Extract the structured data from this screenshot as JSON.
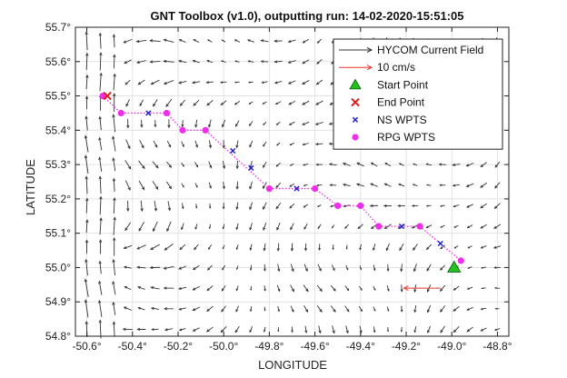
{
  "chart_data": {
    "type": "scatter",
    "title": "GNT Toolbox (v1.0), outputting run: 14-02-2020-15:51:05",
    "xlabel": "LONGITUDE",
    "ylabel": "LATITUDE",
    "xlim": [
      -50.65,
      -48.75
    ],
    "ylim": [
      54.8,
      55.7
    ],
    "x_ticks": [
      -50.6,
      -50.4,
      -50.2,
      -50.0,
      -49.8,
      -49.6,
      -49.4,
      -49.2,
      -49.0,
      -48.8
    ],
    "x_tick_labels": [
      "-50.6°",
      "-50.4°",
      "-50.2°",
      "-50.0°",
      "-49.8°",
      "-49.6°",
      "-49.4°",
      "-49.2°",
      "-49.0°",
      "-48.8°"
    ],
    "y_ticks": [
      54.8,
      54.9,
      55.0,
      55.1,
      55.2,
      55.3,
      55.4,
      55.5,
      55.6,
      55.7
    ],
    "y_tick_labels": [
      "54.8°",
      "54.9°",
      "55.0°",
      "55.1°",
      "55.2°",
      "55.3°",
      "55.4°",
      "55.5°",
      "55.6°",
      "55.7°"
    ],
    "grid": true,
    "legend_position": "top-right",
    "legend": [
      {
        "label": "HYCOM Current Field",
        "marker": "arrow",
        "color": "#333333"
      },
      {
        "label": "10 cm/s",
        "marker": "arrow",
        "color": "#e8342c"
      },
      {
        "label": "Start Point",
        "marker": "triangle",
        "color": "#22c21f"
      },
      {
        "label": "End Point",
        "marker": "x",
        "color": "#e01b1b"
      },
      {
        "label": "NS WPTS",
        "marker": "x",
        "color": "#2222cc"
      },
      {
        "label": "RPG WPTS",
        "marker": "dot",
        "color": "#ee2ee8"
      }
    ],
    "series": [
      {
        "name": "RPG WPTS",
        "color": "#ee2ee8",
        "x": [
          -50.53,
          -50.45,
          -50.25,
          -50.18,
          -50.08,
          -49.8,
          -49.6,
          -49.5,
          -49.4,
          -49.32,
          -49.14,
          -48.96
        ],
        "y": [
          55.5,
          55.45,
          55.45,
          55.4,
          55.4,
          55.23,
          55.23,
          55.18,
          55.18,
          55.12,
          55.12,
          55.02
        ]
      },
      {
        "name": "NS WPTS",
        "color": "#2222cc",
        "x": [
          -50.33,
          -49.96,
          -49.88,
          -49.68,
          -49.22,
          -49.05
        ],
        "y": [
          55.45,
          55.34,
          55.29,
          55.23,
          55.12,
          55.07
        ]
      },
      {
        "name": "Start Point",
        "color": "#22c21f",
        "x": [
          -48.99
        ],
        "y": [
          55.0
        ]
      },
      {
        "name": "End Point",
        "color": "#e01b1b",
        "x": [
          -50.51
        ],
        "y": [
          55.5
        ]
      }
    ],
    "current_field": {
      "lon_start": -50.6,
      "lon_step": 0.06,
      "lon_count": 31,
      "lat_start": 54.82,
      "lat_step": 0.06,
      "lat_count": 15,
      "color": "#333333"
    },
    "reference_arrow": {
      "label": "10 cm/s",
      "lon_start": -49.05,
      "lon_end": -49.21,
      "lat": 54.94,
      "color": "#e8342c"
    }
  }
}
